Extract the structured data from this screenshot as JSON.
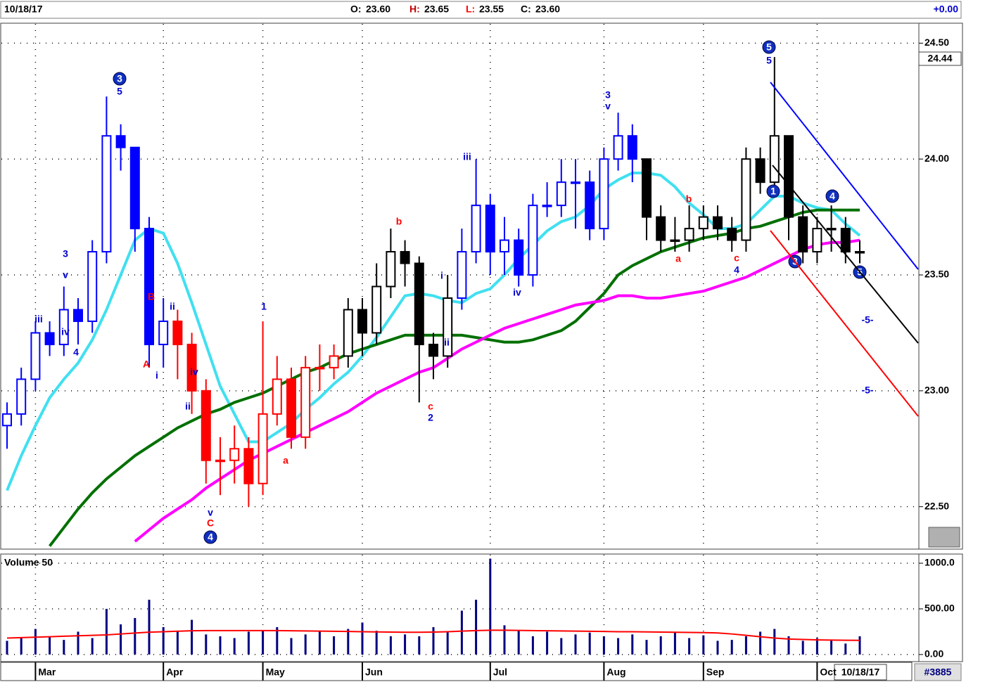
{
  "chart_data": {
    "type": "candlestick",
    "header": {
      "date": "10/18/17",
      "items": [
        {
          "label": "O:",
          "value": "23.60"
        },
        {
          "label": "H:",
          "value": "23.65"
        },
        {
          "label": "L:",
          "value": "23.55"
        },
        {
          "label": "C:",
          "value": "23.60"
        }
      ],
      "change": "+0.00"
    },
    "price_tag": "24.44",
    "footer": {
      "date": "10/18/17",
      "id": "#3885"
    },
    "categories": [
      null,
      null,
      "Mar",
      null,
      null,
      null,
      null,
      null,
      null,
      null,
      null,
      "Apr",
      null,
      null,
      null,
      null,
      null,
      null,
      "May",
      null,
      null,
      null,
      null,
      null,
      null,
      "Jun",
      null,
      null,
      null,
      null,
      null,
      null,
      null,
      null,
      "Jul",
      null,
      null,
      null,
      null,
      null,
      null,
      null,
      "Aug",
      null,
      null,
      null,
      null,
      null,
      null,
      "Sep",
      null,
      null,
      null,
      null,
      null,
      null,
      null,
      "Oct",
      null,
      null,
      null
    ],
    "open": [
      22.85,
      22.9,
      23.05,
      23.25,
      23.2,
      23.35,
      23.3,
      23.6,
      24.1,
      24.05,
      23.7,
      23.2,
      23.3,
      23.2,
      23.0,
      22.7,
      22.7,
      22.75,
      22.6,
      22.9,
      23.05,
      22.8,
      23.1,
      23.1,
      23.15,
      23.35,
      23.25,
      23.45,
      23.6,
      23.55,
      23.2,
      23.15,
      23.4,
      23.6,
      23.8,
      23.6,
      23.65,
      23.5,
      23.8,
      23.8,
      23.9,
      23.9,
      23.7,
      24.0,
      24.1,
      24.0,
      23.75,
      23.65,
      23.65,
      23.7,
      23.75,
      23.7,
      23.65,
      24.0,
      23.9,
      24.1,
      23.75,
      23.6,
      23.7,
      23.7,
      23.6
    ],
    "high": [
      22.95,
      23.1,
      23.3,
      23.3,
      23.45,
      23.4,
      23.65,
      24.27,
      24.15,
      24.05,
      23.75,
      23.4,
      23.35,
      23.25,
      23.05,
      22.8,
      22.85,
      22.8,
      23.3,
      23.15,
      23.1,
      23.15,
      23.2,
      23.2,
      23.4,
      23.4,
      23.55,
      23.7,
      23.65,
      23.58,
      23.25,
      23.5,
      23.7,
      24.0,
      23.85,
      23.75,
      23.7,
      23.85,
      23.9,
      24.0,
      24.0,
      23.95,
      24.05,
      24.2,
      24.15,
      24.0,
      23.8,
      23.75,
      23.8,
      23.8,
      23.8,
      23.75,
      24.05,
      24.05,
      24.44,
      24.1,
      23.8,
      23.75,
      23.8,
      23.75,
      23.65
    ],
    "low": [
      22.75,
      22.85,
      23.0,
      23.15,
      23.15,
      23.2,
      23.25,
      23.55,
      23.95,
      23.6,
      23.1,
      23.1,
      23.05,
      22.9,
      22.6,
      22.55,
      22.6,
      22.5,
      22.55,
      22.85,
      22.75,
      22.75,
      23.0,
      23.05,
      23.1,
      23.15,
      23.2,
      23.4,
      23.45,
      22.95,
      23.05,
      23.1,
      23.35,
      23.55,
      23.5,
      23.5,
      23.45,
      23.45,
      23.75,
      23.75,
      23.7,
      23.65,
      23.65,
      23.95,
      23.9,
      23.65,
      23.6,
      23.6,
      23.6,
      23.65,
      23.65,
      23.6,
      23.6,
      23.85,
      23.85,
      23.65,
      23.55,
      23.55,
      23.6,
      23.55,
      23.55
    ],
    "close": [
      22.9,
      23.05,
      23.25,
      23.2,
      23.35,
      23.3,
      23.6,
      24.1,
      24.05,
      23.7,
      23.2,
      23.3,
      23.2,
      23.0,
      22.7,
      22.7,
      22.75,
      22.6,
      22.9,
      23.05,
      22.8,
      23.1,
      23.1,
      23.15,
      23.35,
      23.25,
      23.45,
      23.6,
      23.55,
      23.2,
      23.15,
      23.4,
      23.6,
      23.8,
      23.6,
      23.65,
      23.5,
      23.8,
      23.8,
      23.9,
      23.9,
      23.7,
      24.0,
      24.1,
      24.0,
      23.75,
      23.65,
      23.65,
      23.7,
      23.75,
      23.7,
      23.65,
      24.0,
      23.9,
      24.1,
      23.75,
      23.6,
      23.7,
      23.7,
      23.6,
      23.6
    ],
    "colors": [
      "#0000ff",
      "#0000ff",
      "#0000ff",
      "#0000ff",
      "#0000ff",
      "#0000ff",
      "#0000ff",
      "#0000ff",
      "#0000ff",
      "#0000ff",
      "#0000ff",
      "#0000ff",
      "#ff0000",
      "#ff0000",
      "#ff0000",
      "#ff0000",
      "#ff0000",
      "#ff0000",
      "#ff0000",
      "#ff0000",
      "#ff0000",
      "#ff0000",
      "#ff0000",
      "#ff0000",
      "#000000",
      "#000000",
      "#000000",
      "#000000",
      "#000000",
      "#000000",
      "#000000",
      "#000000",
      "#0000ff",
      "#0000ff",
      "#0000ff",
      "#0000ff",
      "#0000ff",
      "#0000ff",
      "#0000ff",
      "#0000ff",
      "#0000ff",
      "#0000ff",
      "#0000ff",
      "#0000ff",
      "#0000ff",
      "#000000",
      "#000000",
      "#000000",
      "#000000",
      "#000000",
      "#000000",
      "#000000",
      "#000000",
      "#000000",
      "#000000",
      "#000000",
      "#000000",
      "#000000",
      "#000000",
      "#000000",
      "#000000"
    ],
    "series": [
      {
        "color": "#40e0f0",
        "values": [
          22.57,
          22.72,
          22.85,
          22.97,
          23.05,
          23.12,
          23.22,
          23.35,
          23.5,
          23.65,
          23.7,
          23.68,
          23.55,
          23.38,
          23.2,
          23.02,
          22.9,
          22.78,
          22.78,
          22.82,
          22.86,
          22.92,
          22.97,
          23.03,
          23.08,
          23.15,
          23.23,
          23.32,
          23.41,
          23.42,
          23.41,
          23.39,
          23.38,
          23.42,
          23.44,
          23.5,
          23.57,
          23.63,
          23.69,
          23.73,
          23.75,
          23.8,
          23.87,
          23.91,
          23.94,
          23.94,
          23.93,
          23.88,
          23.81,
          23.76,
          23.7,
          23.7,
          23.72,
          23.78,
          23.84,
          23.84,
          23.81,
          23.79,
          23.78,
          23.72,
          23.67
        ]
      },
      {
        "color": "#007000",
        "values": [
          null,
          null,
          null,
          22.33,
          22.41,
          22.49,
          22.56,
          22.62,
          22.67,
          22.72,
          22.76,
          22.8,
          22.84,
          22.87,
          22.9,
          22.92,
          22.95,
          22.97,
          22.99,
          23.02,
          23.05,
          23.08,
          23.1,
          23.13,
          23.16,
          23.18,
          23.2,
          23.22,
          23.24,
          23.24,
          23.24,
          23.24,
          23.24,
          23.23,
          23.22,
          23.21,
          23.21,
          23.22,
          23.24,
          23.26,
          23.3,
          23.36,
          23.42,
          23.5,
          23.54,
          23.57,
          23.6,
          23.62,
          23.64,
          23.66,
          23.67,
          23.68,
          23.7,
          23.71,
          23.73,
          23.75,
          23.77,
          23.78,
          23.78,
          23.78,
          23.78
        ]
      },
      {
        "color": "#ff00ff",
        "values": [
          null,
          null,
          null,
          null,
          null,
          null,
          null,
          null,
          null,
          22.35,
          22.4,
          22.45,
          22.49,
          22.53,
          22.58,
          22.62,
          22.66,
          22.7,
          22.73,
          22.76,
          22.79,
          22.82,
          22.85,
          22.88,
          22.91,
          22.95,
          22.99,
          23.02,
          23.05,
          23.08,
          23.1,
          23.14,
          23.18,
          23.21,
          23.24,
          23.27,
          23.29,
          23.31,
          23.33,
          23.35,
          23.37,
          23.38,
          23.39,
          23.41,
          23.41,
          23.4,
          23.4,
          23.41,
          23.42,
          23.43,
          23.45,
          23.47,
          23.49,
          23.52,
          23.55,
          23.58,
          23.61,
          23.63,
          23.64,
          23.64,
          23.65
        ]
      }
    ],
    "ylim": [
      22.32,
      24.58
    ],
    "yticks": [
      {
        "value": 22.5,
        "label": "22.50"
      },
      {
        "value": 23.0,
        "label": "23.00"
      },
      {
        "value": 23.5,
        "label": "23.50"
      },
      {
        "value": 24.0,
        "label": "24.00"
      },
      {
        "value": 24.5,
        "label": "24.50"
      }
    ],
    "grid": true,
    "annotations": [
      {
        "text": "iii",
        "color": "#0000cc"
      },
      {
        "text": "3",
        "color": "#0000cc"
      },
      {
        "text": "v",
        "color": "#0000cc"
      },
      {
        "text": "iv",
        "color": "#0000cc"
      },
      {
        "text": "4",
        "color": "#0000cc"
      },
      {
        "text": "3",
        "color": "#0000cc",
        "circled": true
      },
      {
        "text": "5",
        "color": "#0000cc"
      },
      {
        "text": "B",
        "color": "#ff0000"
      },
      {
        "text": "A",
        "color": "#ff0000"
      },
      {
        "text": "ii",
        "color": "#0000cc"
      },
      {
        "text": "i",
        "color": "#0000cc"
      },
      {
        "text": "iv",
        "color": "#0000cc"
      },
      {
        "text": "ii",
        "color": "#0000cc"
      },
      {
        "text": "v",
        "color": "#0000cc"
      },
      {
        "text": "C",
        "color": "#ff0000"
      },
      {
        "text": "4",
        "color": "#0000cc",
        "circled": true
      },
      {
        "text": "1",
        "color": "#0000cc"
      },
      {
        "text": "a",
        "color": "#ff0000"
      },
      {
        "text": "b",
        "color": "#ff0000"
      },
      {
        "text": "c",
        "color": "#ff0000"
      },
      {
        "text": "2",
        "color": "#0000cc"
      },
      {
        "text": "i",
        "color": "#0000cc"
      },
      {
        "text": "ii",
        "color": "#0000cc"
      },
      {
        "text": "iii",
        "color": "#0000cc"
      },
      {
        "text": "iv",
        "color": "#0000cc"
      },
      {
        "text": "3",
        "color": "#0000cc"
      },
      {
        "text": "v",
        "color": "#0000cc"
      },
      {
        "text": "a",
        "color": "#ff0000"
      },
      {
        "text": "b",
        "color": "#ff0000"
      },
      {
        "text": "c",
        "color": "#ff0000"
      },
      {
        "text": "4",
        "color": "#0000cc"
      },
      {
        "text": "5",
        "color": "#0000cc",
        "circled": true
      },
      {
        "text": "5",
        "color": "#0000cc"
      },
      {
        "text": "1",
        "color": "#0000cc",
        "circled": true
      },
      {
        "text": "3",
        "color": "#0000cc",
        "circled": true
      },
      {
        "text": "4",
        "color": "#0000cc",
        "circled": true
      },
      {
        "text": "5",
        "color": "#0000cc",
        "circled": true
      },
      {
        "text": "-5-",
        "color": "#0000cc"
      },
      {
        "text": "-5-",
        "color": "#0000cc"
      }
    ],
    "volume_panel": {
      "title": "Volume 50",
      "color": "#000080",
      "avg_color": "#ff0000",
      "values": [
        150,
        180,
        280,
        200,
        160,
        250,
        180,
        500,
        330,
        400,
        600,
        300,
        250,
        380,
        220,
        200,
        180,
        250,
        260,
        300,
        180,
        220,
        250,
        200,
        280,
        350,
        260,
        200,
        220,
        200,
        300,
        250,
        480,
        600,
        1050,
        320,
        260,
        200,
        250,
        180,
        220,
        240,
        200,
        180,
        220,
        160,
        200,
        240,
        180,
        210,
        150,
        160,
        200,
        250,
        280,
        200,
        150,
        180,
        160,
        120,
        200
      ],
      "avg": [
        180,
        185,
        190,
        195,
        200,
        205,
        210,
        215,
        225,
        235,
        245,
        250,
        255,
        260,
        262,
        262,
        262,
        262,
        262,
        262,
        260,
        258,
        256,
        254,
        252,
        250,
        248,
        246,
        244,
        244,
        246,
        250,
        256,
        262,
        266,
        266,
        264,
        262,
        260,
        258,
        256,
        254,
        252,
        250,
        250,
        248,
        246,
        244,
        242,
        240,
        236,
        225,
        210,
        195,
        180,
        170,
        165,
        160,
        158,
        156,
        155
      ],
      "ylim": [
        -70,
        1085
      ],
      "yticks": [
        {
          "value": 0,
          "label": "0.00"
        },
        {
          "value": 500,
          "label": "500.00"
        },
        {
          "value": 1000,
          "label": "1000.0"
        }
      ]
    }
  }
}
